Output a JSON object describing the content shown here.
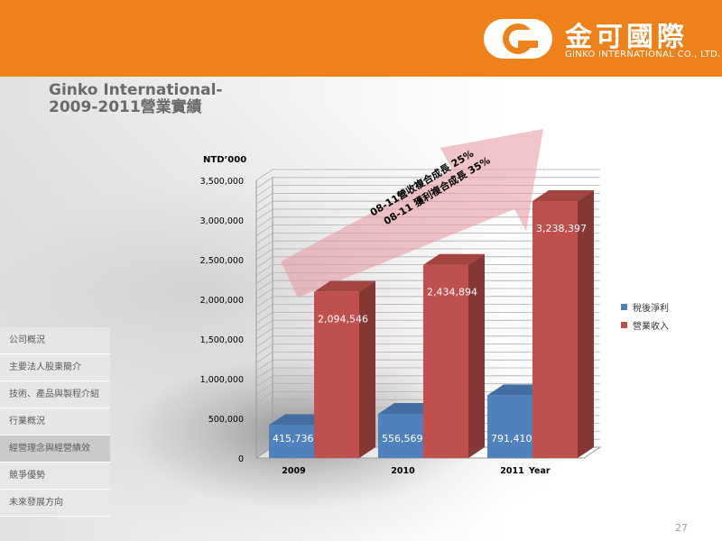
{
  "header": {
    "logo_text_cn": "金可國際",
    "logo_text_en": "GINKO INTERNATIONAL CO., LTD."
  },
  "title": {
    "line1": "Ginko International-",
    "line2": "2009-2011營業實績"
  },
  "sidebar": {
    "items": [
      {
        "label": "公司概況"
      },
      {
        "label": "主要法人股東簡介"
      },
      {
        "label": "技術、產品與製程介紹"
      },
      {
        "label": "行業概況"
      },
      {
        "label": "經營理念與經營績效"
      },
      {
        "label": "競爭優勢"
      },
      {
        "label": "未來發展方向"
      }
    ],
    "active_index": 4
  },
  "page_number": "27",
  "colors": {
    "header": "#EE8119",
    "series_net": "#4F81BD",
    "series_revenue": "#C0504D",
    "arrow": "#E8A0A8"
  },
  "chart_data": {
    "type": "bar",
    "unit_label": "NTD’000",
    "categories": [
      "2009",
      "2010",
      "2011"
    ],
    "xlabel": "Year",
    "ylim": [
      0,
      3500000
    ],
    "yticks": [
      "0",
      "500,000",
      "1,000,000",
      "1,500,000",
      "2,000,000",
      "2,500,000",
      "3,000,000",
      "3,500,000"
    ],
    "grid": true,
    "legend_position": "right",
    "series": [
      {
        "name": "稅後淨利",
        "values": [
          415736,
          556569,
          791410
        ],
        "labels": [
          "415,736",
          "556,569",
          "791,410"
        ],
        "color": "#4F81BD"
      },
      {
        "name": "營業收入",
        "values": [
          2094546,
          2434894,
          3238397
        ],
        "labels": [
          "2,094,546",
          "2,434,894",
          "3,238,397"
        ],
        "color": "#C0504D"
      }
    ],
    "annotations": [
      "08-11營收複合成長 25%",
      "08-11 獲利複合成長 35%"
    ]
  }
}
